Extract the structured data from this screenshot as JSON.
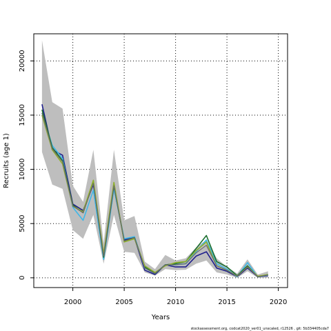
{
  "chart_data": {
    "type": "line",
    "xlabel": "Years",
    "ylabel": "Recruits (age 1)",
    "xlim": [
      1996.2,
      2020.9
    ],
    "ylim": [
      -900,
      22500
    ],
    "xticks": [
      2000,
      2005,
      2010,
      2015,
      2020
    ],
    "yticks": [
      0,
      5000,
      10000,
      15000,
      20000
    ],
    "grid": true,
    "footer": "stockassessment.org, codcat2020_ver01_unscaled, r12526 , git: 5b334405cda7",
    "band": {
      "color": "#bebebe",
      "x": [
        1997,
        1998,
        1999,
        2000,
        2001,
        2002,
        2003,
        2004,
        2005,
        2006,
        2007,
        2008,
        2009,
        2010,
        2011,
        2012,
        2013,
        2014,
        2015,
        2016,
        2017,
        2018,
        2019
      ],
      "upper": [
        21900,
        16200,
        15600,
        8500,
        7000,
        11800,
        3200,
        11800,
        5300,
        5700,
        1500,
        800,
        2100,
        1600,
        1800,
        2800,
        3500,
        1800,
        1000,
        400,
        1700,
        300,
        600
      ],
      "lower": [
        11600,
        8600,
        8200,
        4400,
        3600,
        5800,
        1300,
        5800,
        2400,
        2300,
        500,
        200,
        800,
        700,
        750,
        1300,
        1600,
        500,
        300,
        0,
        600,
        0,
        0
      ]
    },
    "series": [
      {
        "color": "#1e1e8c",
        "values": [
          16000,
          11800,
          11300,
          6800,
          6200,
          8600,
          2000,
          8400,
          3500,
          3700,
          700,
          300,
          1200,
          1000,
          1000,
          2000,
          2400,
          900,
          600,
          100,
          900,
          100,
          200
        ]
      },
      {
        "color": "#3fb7e8",
        "values": [
          15200,
          12200,
          11000,
          6500,
          5300,
          8100,
          1700,
          8200,
          3600,
          3800,
          900,
          400,
          1200,
          1200,
          1300,
          2400,
          3500,
          1300,
          800,
          100,
          1400,
          100,
          250
        ]
      },
      {
        "color": "#1a6e2e",
        "values": [
          15500,
          12000,
          10800,
          6700,
          6000,
          8800,
          1900,
          8500,
          3400,
          3700,
          1000,
          400,
          1200,
          1300,
          1500,
          2700,
          3900,
          1500,
          1000,
          200,
          1100,
          100,
          300
        ]
      },
      {
        "color": "#8fb02c",
        "values": [
          15000,
          11800,
          10500,
          6600,
          6100,
          9000,
          2200,
          8800,
          3300,
          3600,
          1100,
          500,
          1100,
          1400,
          1500,
          2500,
          3300,
          1100,
          700,
          150,
          1000,
          150,
          280
        ]
      },
      {
        "color": "#6b6b6b",
        "values": [
          15200,
          11900,
          10700,
          6600,
          6000,
          8700,
          2000,
          8500,
          3400,
          3700,
          900,
          400,
          1200,
          1200,
          1300,
          2300,
          3000,
          1100,
          700,
          150,
          1000,
          100,
          250
        ]
      }
    ]
  }
}
